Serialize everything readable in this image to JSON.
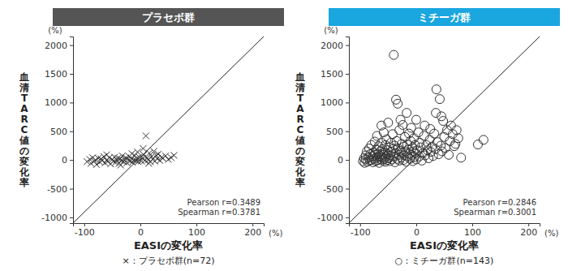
{
  "chart_data": [
    {
      "type": "scatter",
      "title": "プラセボ群",
      "x_label": "EASIの変化率",
      "y_label": "血清TARC値の変化率",
      "x_unit": "(%)",
      "y_unit": "(%)",
      "annotations": [
        "Pearson r=0.3489",
        "Spearman r=0.3781"
      ],
      "caption": "×：プラセボ群(n=72)",
      "marker": "x",
      "color": "#333333",
      "xlim": [
        -120,
        220
      ],
      "ylim": [
        -1100,
        2150
      ],
      "xticks": [
        -100,
        0,
        100,
        200
      ],
      "yticks": [
        -1000,
        -500,
        0,
        500,
        1000,
        1500,
        2000
      ],
      "x": [
        -95,
        -90,
        -88,
        -85,
        -82,
        -80,
        -78,
        -75,
        -72,
        -70,
        -68,
        -65,
        -63,
        -60,
        -58,
        -55,
        -53,
        -50,
        -48,
        -46,
        -44,
        -42,
        -40,
        -38,
        -36,
        -34,
        -32,
        -30,
        -28,
        -26,
        -24,
        -22,
        -20,
        -18,
        -16,
        -14,
        -12,
        -10,
        -8,
        -6,
        -4,
        -2,
        0,
        2,
        4,
        6,
        8,
        10,
        12,
        14,
        16,
        18,
        20,
        22,
        24,
        26,
        28,
        30,
        32,
        35,
        38,
        40,
        45,
        50,
        55,
        60,
        -15,
        -5,
        5,
        -60,
        -35,
        15
      ],
      "y": [
        -30,
        10,
        -60,
        40,
        -20,
        0,
        -80,
        30,
        -40,
        20,
        -10,
        60,
        -50,
        0,
        -30,
        40,
        -70,
        10,
        -20,
        50,
        -40,
        0,
        30,
        -60,
        20,
        -10,
        70,
        -30,
        0,
        40,
        -50,
        10,
        60,
        -20,
        30,
        -40,
        0,
        80,
        -10,
        20,
        -30,
        50,
        0,
        -20,
        30,
        90,
        -10,
        420,
        40,
        0,
        120,
        -30,
        60,
        10,
        150,
        -20,
        80,
        20,
        100,
        -10,
        50,
        30,
        70,
        10,
        40,
        80,
        110,
        140,
        200,
        90,
        -90,
        -60
      ]
    },
    {
      "type": "scatter",
      "title": "ミチーガ群",
      "x_label": "EASIの変化率",
      "y_label": "血清TARC値の変化率",
      "x_unit": "(%)",
      "y_unit": "(%)",
      "annotations": [
        "Pearson r=0.2846",
        "Spearman r=0.3001"
      ],
      "caption": "○：ミチーガ群(n=143)",
      "marker": "circle",
      "color": "#333333",
      "xlim": [
        -120,
        220
      ],
      "ylim": [
        -1100,
        2150
      ],
      "xticks": [
        -100,
        0,
        100,
        200
      ],
      "yticks": [
        -1000,
        -500,
        0,
        500,
        1000,
        1500,
        2000
      ],
      "x": [
        -95,
        -93,
        -92,
        -90,
        -90,
        -88,
        -87,
        -85,
        -84,
        -83,
        -82,
        -80,
        -80,
        -78,
        -77,
        -76,
        -75,
        -74,
        -73,
        -72,
        -71,
        -70,
        -70,
        -69,
        -68,
        -67,
        -66,
        -65,
        -64,
        -63,
        -62,
        -62,
        -61,
        -60,
        -60,
        -59,
        -58,
        -57,
        -56,
        -55,
        -55,
        -54,
        -53,
        -52,
        -51,
        -50,
        -50,
        -49,
        -48,
        -47,
        -46,
        -45,
        -44,
        -43,
        -42,
        -41,
        -40,
        -40,
        -39,
        -38,
        -37,
        -36,
        -35,
        -34,
        -33,
        -32,
        -31,
        -30,
        -30,
        -29,
        -28,
        -27,
        -26,
        -25,
        -24,
        -23,
        -22,
        -21,
        -20,
        -19,
        -18,
        -17,
        -16,
        -15,
        -14,
        -13,
        -12,
        -11,
        -10,
        -9,
        -8,
        -7,
        -6,
        -5,
        -4,
        -3,
        -2,
        -1,
        0,
        0,
        2,
        4,
        5,
        6,
        8,
        10,
        12,
        14,
        15,
        16,
        18,
        20,
        22,
        24,
        25,
        26,
        28,
        30,
        32,
        34,
        35,
        36,
        38,
        40,
        42,
        44,
        45,
        46,
        48,
        50,
        52,
        55,
        58,
        60,
        62,
        65,
        68,
        70,
        72,
        75,
        80,
        110,
        120
      ],
      "y": [
        -20,
        30,
        -50,
        80,
        10,
        150,
        -30,
        40,
        200,
        -10,
        100,
        0,
        260,
        60,
        -40,
        130,
        20,
        320,
        90,
        -20,
        180,
        50,
        420,
        0,
        110,
        240,
        -50,
        70,
        150,
        10,
        600,
        300,
        40,
        -10,
        190,
        90,
        480,
        20,
        130,
        -30,
        260,
        60,
        360,
        0,
        170,
        100,
        650,
        30,
        220,
        -20,
        80,
        300,
        140,
        10,
        450,
        190,
        1830,
        60,
        250,
        -40,
        120,
        1050,
        330,
        20,
        980,
        200,
        90,
        520,
        -10,
        160,
        700,
        40,
        280,
        130,
        610,
        0,
        230,
        80,
        400,
        150,
        -30,
        820,
        270,
        60,
        180,
        460,
        110,
        20,
        330,
        560,
        90,
        210,
        -20,
        150,
        380,
        50,
        260,
        120,
        700,
        10,
        170,
        480,
        60,
        300,
        220,
        -10,
        120,
        420,
        600,
        80,
        260,
        170,
        30,
        350,
        540,
        140,
        230,
        70,
        460,
        190,
        820,
        1230,
        310,
        100,
        1060,
        250,
        760,
        150,
        680,
        400,
        210,
        520,
        90,
        330,
        600,
        450,
        240,
        280,
        520,
        380,
        40,
        270,
        350
      ]
    }
  ]
}
